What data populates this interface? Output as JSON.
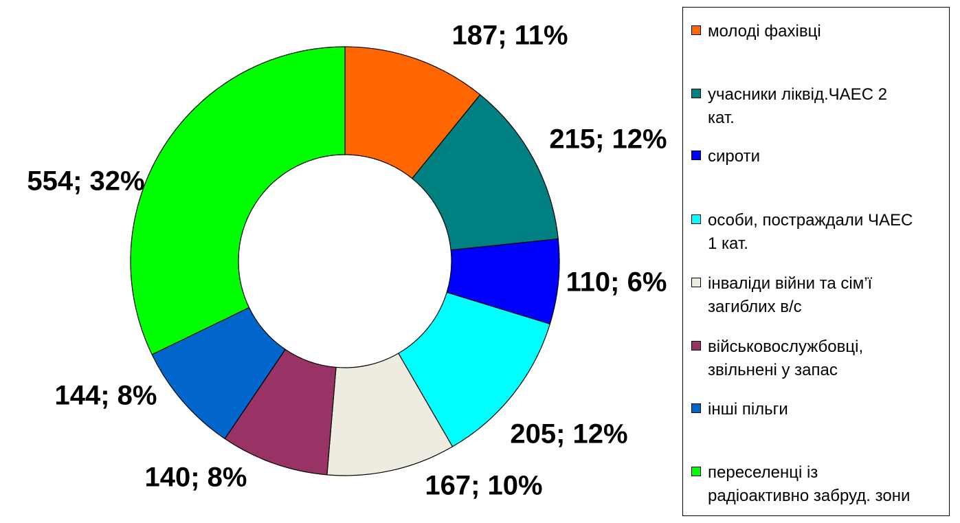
{
  "chart_data": {
    "type": "pie",
    "variant": "doughnut",
    "title": "",
    "legend_position": "right",
    "slices": [
      {
        "name": "молоді фахівці",
        "value": 187,
        "label": "187; 11%",
        "color": "#ff6600"
      },
      {
        "name": "учасники ліквід.ЧАЕС 2 кат.",
        "value": 215,
        "label": "215; 12%",
        "color": "#008080"
      },
      {
        "name": "сироти",
        "value": 110,
        "label": "110; 6%",
        "color": "#0000ff"
      },
      {
        "name": "особи, постраждали ЧАЕС 1 кат.",
        "value": 205,
        "label": "205; 12%",
        "color": "#00ffff"
      },
      {
        "name": "інваліди війни та сім’ї загиблих в/с",
        "value": 167,
        "label": "167; 10%",
        "color": "#eeece1"
      },
      {
        "name": "військовослужбовці, звільнені у запас",
        "value": 140,
        "label": "140; 8%",
        "color": "#993366"
      },
      {
        "name": "інші пільги",
        "value": 144,
        "label": "144; 8%",
        "color": "#0066cc"
      },
      {
        "name": "переселенці із радіоактивно забруд. зони",
        "value": 554,
        "label": "554; 32%",
        "color": "#00ff00"
      }
    ]
  }
}
